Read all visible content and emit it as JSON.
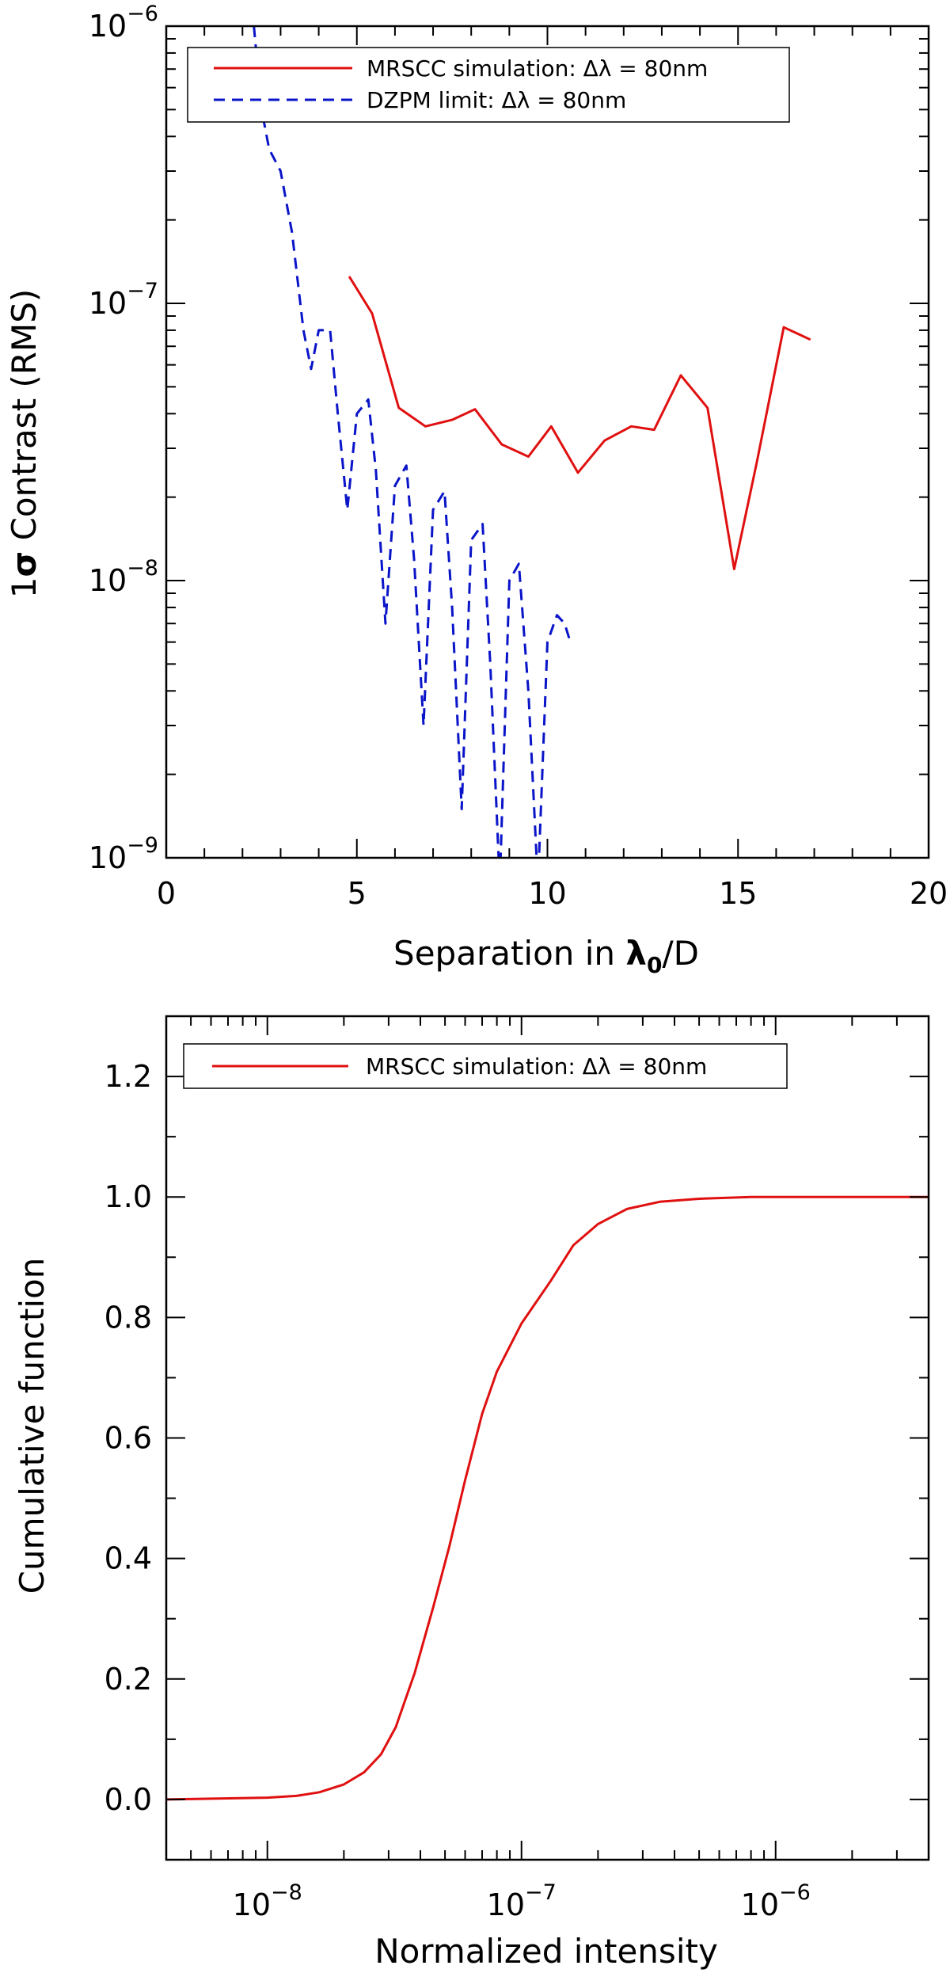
{
  "chart_data": [
    {
      "type": "line",
      "x_scale": "linear",
      "y_scale": "log",
      "xlim": [
        0,
        20
      ],
      "ylim": [
        1e-09,
        1e-06
      ],
      "xlabel": "Separation in λ₀/D",
      "ylabel": "1σ Contrast (RMS)",
      "x_ticks": [
        0,
        5,
        10,
        15,
        20
      ],
      "x_tick_labels": [
        "0",
        "5",
        "10",
        "15",
        "20"
      ],
      "y_ticks": [
        1e-09,
        1e-08,
        1e-07,
        1e-06
      ],
      "y_tick_labels": [
        {
          "base": "10",
          "exp": "−9"
        },
        {
          "base": "10",
          "exp": "−8"
        },
        {
          "base": "10",
          "exp": "−7"
        },
        {
          "base": "10",
          "exp": "−6"
        }
      ],
      "legend_position": "top",
      "series": [
        {
          "name": "MRSCC simulation: Δλ = 80nm",
          "color": "#e01010",
          "style": "solid",
          "x": [
            4.8,
            5.4,
            6.1,
            6.8,
            7.5,
            8.1,
            8.8,
            9.5,
            10.1,
            10.8,
            11.5,
            12.2,
            12.8,
            13.5,
            14.2,
            14.9,
            15.5,
            16.2,
            16.9
          ],
          "y": [
            1.25e-07,
            9.2e-08,
            4.2e-08,
            3.6e-08,
            3.8e-08,
            4.15e-08,
            3.1e-08,
            2.8e-08,
            3.6e-08,
            2.45e-08,
            3.2e-08,
            3.6e-08,
            3.5e-08,
            5.5e-08,
            4.2e-08,
            1.1e-08,
            2.7e-08,
            8.2e-08,
            7.4e-08
          ]
        },
        {
          "name": "DZPM limit: Δλ = 80nm",
          "color": "#0a14c8",
          "style": "dashed",
          "x": [
            2.3,
            2.5,
            2.7,
            3.0,
            3.3,
            3.6,
            3.8,
            4.0,
            4.3,
            4.5,
            4.75,
            5.0,
            5.3,
            5.5,
            5.75,
            6.0,
            6.3,
            6.5,
            6.75,
            7.0,
            7.3,
            7.5,
            7.75,
            8.0,
            8.3,
            8.5,
            8.75,
            9.0,
            9.25,
            9.5,
            9.75,
            10.0,
            10.25,
            10.45,
            10.6
          ],
          "y": [
            1e-06,
            5e-07,
            3.6e-07,
            3e-07,
            1.8e-07,
            8e-08,
            5.8e-08,
            8e-08,
            8e-08,
            4e-08,
            1.8e-08,
            4e-08,
            4.5e-08,
            2.5e-08,
            7e-09,
            2.2e-08,
            2.6e-08,
            1.2e-08,
            3e-09,
            1.8e-08,
            2.1e-08,
            8e-09,
            1.5e-09,
            1.4e-08,
            1.6e-08,
            5e-09,
            8e-10,
            1e-08,
            1.15e-08,
            4e-09,
            8e-10,
            6e-09,
            7.5e-09,
            7e-09,
            6e-09
          ]
        }
      ]
    },
    {
      "type": "line",
      "x_scale": "log",
      "y_scale": "linear",
      "xlim": [
        4e-09,
        4e-06
      ],
      "ylim": [
        -0.1,
        1.3
      ],
      "xlabel": "Normalized intensity",
      "ylabel": "Cumulative function",
      "x_ticks": [
        1e-08,
        1e-07,
        1e-06
      ],
      "x_tick_labels": [
        {
          "base": "10",
          "exp": "−8"
        },
        {
          "base": "10",
          "exp": "−7"
        },
        {
          "base": "10",
          "exp": "−6"
        }
      ],
      "y_ticks": [
        0.0,
        0.2,
        0.4,
        0.6,
        0.8,
        1.0,
        1.2
      ],
      "y_tick_labels": [
        "0.0",
        "0.2",
        "0.4",
        "0.6",
        "0.8",
        "1.0",
        "1.2"
      ],
      "legend_position": "top-left",
      "series": [
        {
          "name": "MRSCC simulation: Δλ = 80nm",
          "color": "#e01010",
          "style": "solid",
          "x": [
            4e-09,
            1e-08,
            1.3e-08,
            1.6e-08,
            2e-08,
            2.4e-08,
            2.8e-08,
            3.2e-08,
            3.8e-08,
            4.5e-08,
            5.2e-08,
            6e-08,
            7e-08,
            8e-08,
            1e-07,
            1.3e-07,
            1.6e-07,
            2e-07,
            2.6e-07,
            3.5e-07,
            5e-07,
            8e-07,
            1e-06,
            4e-06
          ],
          "y": [
            0.0,
            0.003,
            0.006,
            0.012,
            0.025,
            0.045,
            0.075,
            0.12,
            0.21,
            0.32,
            0.42,
            0.53,
            0.64,
            0.71,
            0.79,
            0.86,
            0.92,
            0.955,
            0.98,
            0.992,
            0.997,
            1.0,
            1.0,
            1.0
          ]
        }
      ]
    }
  ]
}
